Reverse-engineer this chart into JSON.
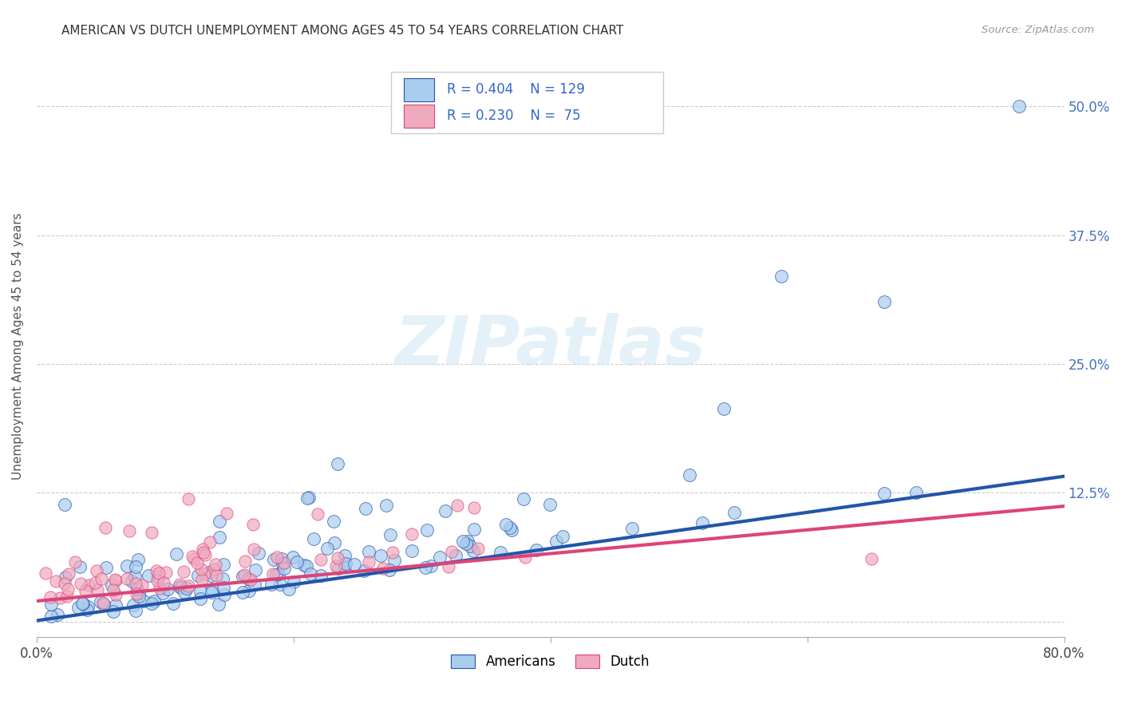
{
  "title": "AMERICAN VS DUTCH UNEMPLOYMENT AMONG AGES 45 TO 54 YEARS CORRELATION CHART",
  "source": "Source: ZipAtlas.com",
  "ylabel": "Unemployment Among Ages 45 to 54 years",
  "xlim": [
    0.0,
    0.8
  ],
  "ylim": [
    -0.015,
    0.55
  ],
  "xticks": [
    0.0,
    0.2,
    0.4,
    0.6,
    0.8
  ],
  "xticklabels": [
    "0.0%",
    "",
    "",
    "",
    "80.0%"
  ],
  "yticks_right": [
    0.0,
    0.125,
    0.25,
    0.375,
    0.5
  ],
  "yticklabels_right": [
    "",
    "12.5%",
    "25.0%",
    "37.5%",
    "50.0%"
  ],
  "watermark": "ZIPatlas",
  "american_color": "#aaccee",
  "dutch_color": "#f0aac0",
  "american_line_color": "#2255aa",
  "dutch_line_color": "#dd4477",
  "background_color": "#ffffff",
  "grid_color": "#cccccc",
  "american_N": 129,
  "dutch_N": 75,
  "am_intercept": 0.001,
  "am_slope": 0.175,
  "du_intercept": 0.02,
  "du_slope": 0.12
}
